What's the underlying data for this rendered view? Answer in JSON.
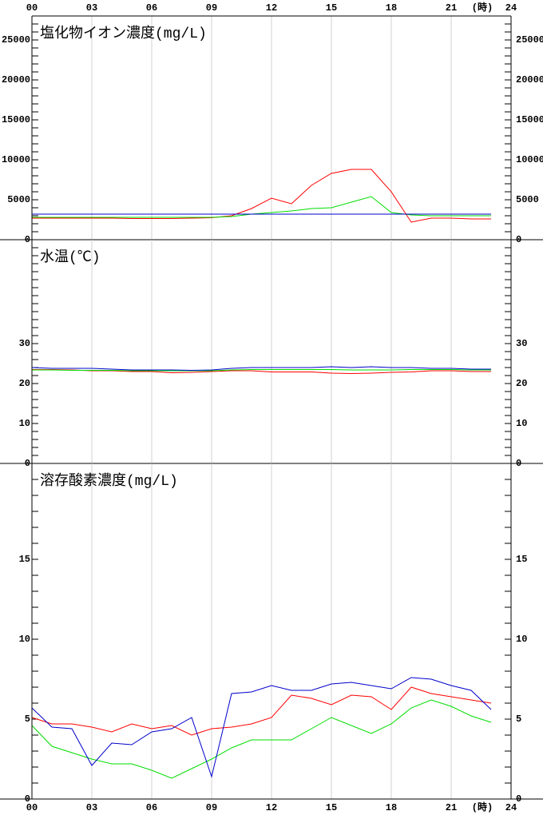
{
  "chart_data": [
    {
      "type": "line",
      "title": "塩化物イオン濃度(mg/L)",
      "xlabel": "(時)",
      "xtick_label_side": "top",
      "xlim": [
        0,
        24
      ],
      "xticks": [
        {
          "value": 0,
          "label": "00"
        },
        {
          "value": 3,
          "label": "03"
        },
        {
          "value": 6,
          "label": "06"
        },
        {
          "value": 9,
          "label": "09"
        },
        12,
        15,
        18,
        21,
        24
      ],
      "x": [
        0,
        1,
        2,
        3,
        4,
        5,
        6,
        7,
        8,
        9,
        10,
        11,
        12,
        13,
        14,
        15,
        16,
        17,
        18,
        19,
        20,
        21,
        22,
        23
      ],
      "ylim": [
        0,
        28000
      ],
      "yticks": [
        0,
        5000,
        10000,
        15000,
        20000,
        25000
      ],
      "minor_ytick_step": 1000,
      "grid": true,
      "series": [
        {
          "color": "#ff0000",
          "values": [
            2700,
            2700,
            2700,
            2700,
            2700,
            2650,
            2650,
            2650,
            2700,
            2750,
            3000,
            3900,
            5200,
            4500,
            6800,
            8300,
            8800,
            8800,
            6000,
            2200,
            2700,
            2700,
            2600,
            2600
          ]
        },
        {
          "color": "#00dd00",
          "values": [
            2800,
            2800,
            2800,
            2800,
            2800,
            2800,
            2800,
            2800,
            2800,
            2800,
            2900,
            3200,
            3400,
            3600,
            3900,
            4000,
            4700,
            5400,
            3400,
            3100,
            3000,
            3000,
            3000,
            3000
          ]
        },
        {
          "color": "#0000cc",
          "values": [
            3200,
            3200,
            3200,
            3200,
            3200,
            3200,
            3200,
            3200,
            3200,
            3200,
            3200,
            3200,
            3200,
            3200,
            3200,
            3200,
            3200,
            3200,
            3200,
            3200,
            3200,
            3200,
            3200,
            3200
          ]
        }
      ]
    },
    {
      "type": "line",
      "title": "水温(℃)",
      "xtick_label_side": "none",
      "xlim": [
        0,
        24
      ],
      "xticks": [
        {
          "value": 0,
          "label": "00"
        },
        {
          "value": 3,
          "label": "03"
        },
        {
          "value": 6,
          "label": "06"
        },
        {
          "value": 9,
          "label": "09"
        },
        12,
        15,
        18,
        21,
        24
      ],
      "x": [
        0,
        1,
        2,
        3,
        4,
        5,
        6,
        7,
        8,
        9,
        10,
        11,
        12,
        13,
        14,
        15,
        16,
        17,
        18,
        19,
        20,
        21,
        22,
        23
      ],
      "ylim": [
        0,
        56
      ],
      "yticks": [
        0,
        10,
        20,
        30
      ],
      "minor_ytick_step": 2,
      "grid": true,
      "series": [
        {
          "color": "#ff0000",
          "values": [
            23.5,
            23.5,
            23.4,
            23.2,
            23.2,
            23.0,
            23.0,
            22.7,
            22.8,
            23.0,
            23.2,
            23.2,
            22.9,
            22.9,
            22.9,
            22.6,
            22.5,
            22.6,
            22.8,
            22.9,
            23.2,
            23.2,
            23.0,
            23.0
          ]
        },
        {
          "color": "#00dd00",
          "values": [
            23.4,
            23.4,
            23.3,
            23.3,
            23.3,
            23.2,
            23.2,
            23.2,
            23.2,
            23.2,
            23.4,
            23.5,
            23.5,
            23.5,
            23.5,
            23.5,
            23.4,
            23.4,
            23.4,
            23.5,
            23.5,
            23.5,
            23.4,
            23.4
          ]
        },
        {
          "color": "#0000cc",
          "values": [
            24.0,
            23.8,
            23.8,
            23.8,
            23.6,
            23.4,
            23.4,
            23.4,
            23.3,
            23.4,
            23.8,
            24.0,
            24.0,
            24.0,
            24.0,
            24.2,
            24.0,
            24.2,
            24.0,
            24.0,
            23.8,
            23.8,
            23.6,
            23.6
          ]
        }
      ]
    },
    {
      "type": "line",
      "title": "溶存酸素濃度(mg/L)",
      "xlabel": "(時)",
      "xtick_label_side": "bottom",
      "xlim": [
        0,
        24
      ],
      "xticks": [
        {
          "value": 0,
          "label": "00"
        },
        {
          "value": 3,
          "label": "03"
        },
        {
          "value": 6,
          "label": "06"
        },
        {
          "value": 9,
          "label": "09"
        },
        12,
        15,
        18,
        21,
        24
      ],
      "x": [
        0,
        1,
        2,
        3,
        4,
        5,
        6,
        7,
        8,
        9,
        10,
        11,
        12,
        13,
        14,
        15,
        16,
        17,
        18,
        19,
        20,
        21,
        22,
        23
      ],
      "ylim": [
        0,
        21
      ],
      "yticks": [
        0,
        5,
        10,
        15
      ],
      "minor_ytick_step": 1,
      "grid": true,
      "series": [
        {
          "color": "#ff0000",
          "values": [
            5.1,
            4.7,
            4.7,
            4.5,
            4.2,
            4.7,
            4.4,
            4.6,
            4.0,
            4.4,
            4.5,
            4.7,
            5.1,
            6.5,
            6.3,
            5.9,
            6.5,
            6.4,
            5.6,
            7.0,
            6.6,
            6.4,
            6.2,
            6.0
          ]
        },
        {
          "color": "#00dd00",
          "values": [
            4.6,
            3.3,
            2.9,
            2.5,
            2.2,
            2.2,
            1.8,
            1.3,
            1.9,
            2.5,
            3.2,
            3.7,
            3.7,
            3.7,
            4.4,
            5.1,
            4.6,
            4.1,
            4.7,
            5.7,
            6.2,
            5.8,
            5.2,
            4.8
          ]
        },
        {
          "color": "#0000cc",
          "values": [
            5.7,
            4.5,
            4.4,
            2.1,
            3.5,
            3.4,
            4.2,
            4.4,
            5.1,
            1.4,
            6.6,
            6.7,
            7.1,
            6.8,
            6.8,
            7.2,
            7.3,
            7.1,
            6.9,
            7.6,
            7.5,
            7.1,
            6.8,
            5.6
          ]
        }
      ]
    }
  ]
}
